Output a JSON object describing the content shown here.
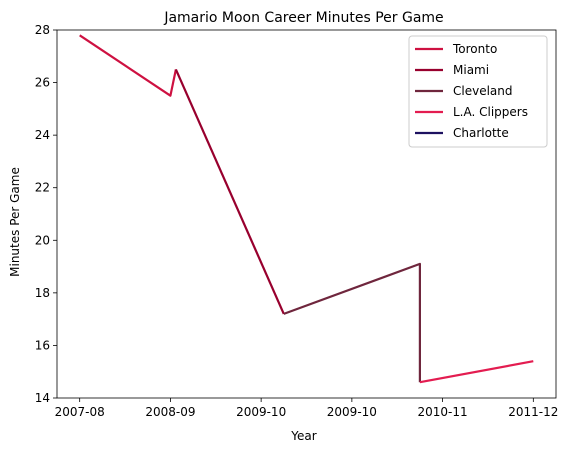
{
  "chart_data": {
    "type": "line",
    "title": "Jamario Moon Career Minutes Per Game",
    "xlabel": "Year",
    "ylabel": "Minutes Per Game",
    "ylim": [
      14,
      28
    ],
    "yticks": [
      14,
      16,
      18,
      20,
      22,
      24,
      26,
      28
    ],
    "x_tick_labels": [
      "2007-08",
      "2008-09",
      "2009-10",
      "2009-10",
      "2010-11",
      "2011-12"
    ],
    "x_tick_positions": [
      0,
      1,
      2,
      3,
      4,
      5
    ],
    "xlim": [
      -0.25,
      5.25
    ],
    "grid": false,
    "legend_position": "top-right",
    "series": [
      {
        "name": "Toronto",
        "color": "#ce1141",
        "points": [
          [
            0,
            27.8
          ],
          [
            1,
            25.5
          ],
          [
            1.06,
            26.5
          ]
        ]
      },
      {
        "name": "Miami",
        "color": "#98002e",
        "points": [
          [
            1.06,
            26.5
          ],
          [
            2.25,
            17.2
          ]
        ]
      },
      {
        "name": "Cleveland",
        "color": "#6f263d",
        "points": [
          [
            2.25,
            17.2
          ],
          [
            3.75,
            19.1
          ],
          [
            3.75,
            14.6
          ]
        ]
      },
      {
        "name": "L.A. Clippers",
        "color": "#e31c50",
        "points": [
          [
            3.75,
            14.6
          ],
          [
            5,
            15.4
          ]
        ]
      },
      {
        "name": "Charlotte",
        "color": "#1d1160",
        "points": []
      }
    ]
  }
}
